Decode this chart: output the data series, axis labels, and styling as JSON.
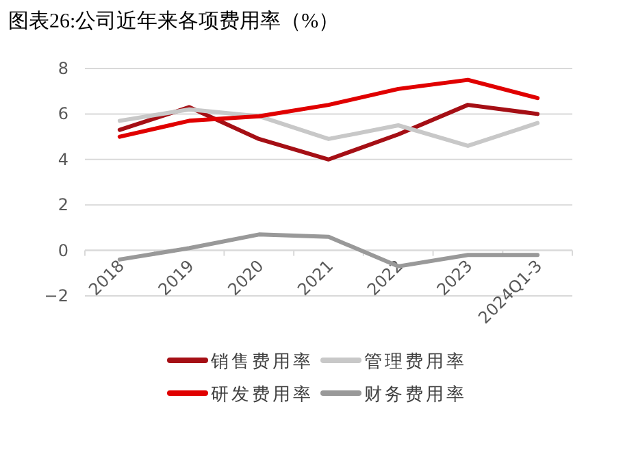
{
  "chart_data": {
    "type": "line",
    "title": "图表26:公司近年来各项费用率（%）",
    "categories": [
      "2018",
      "2019",
      "2020",
      "2021",
      "2022",
      "2023",
      "2024Q1-3"
    ],
    "series": [
      {
        "name": "销售费用率",
        "color": "#a50f15",
        "values": [
          5.3,
          6.3,
          4.9,
          4.0,
          5.1,
          6.4,
          6.0
        ]
      },
      {
        "name": "管理费用率",
        "color": "#c8c8c8",
        "values": [
          5.7,
          6.2,
          5.9,
          4.9,
          5.5,
          4.6,
          5.6
        ]
      },
      {
        "name": "研发费用率",
        "color": "#e00000",
        "values": [
          5.0,
          5.7,
          5.9,
          6.4,
          7.1,
          7.5,
          6.7
        ]
      },
      {
        "name": "财务费用率",
        "color": "#999999",
        "values": [
          -0.4,
          0.1,
          0.7,
          0.6,
          -0.7,
          -0.2,
          -0.2
        ]
      }
    ],
    "ylim": [
      -2,
      8
    ],
    "yticks": [
      -2,
      0,
      2,
      4,
      6,
      8
    ],
    "grid": "y",
    "legend": "bottom"
  }
}
